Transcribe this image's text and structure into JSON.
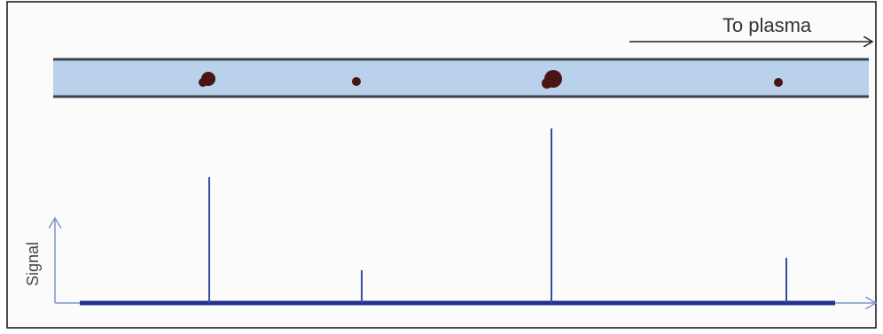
{
  "header": {
    "direction_label": "To plasma"
  },
  "axis": {
    "y_label": "Signal"
  }
}
